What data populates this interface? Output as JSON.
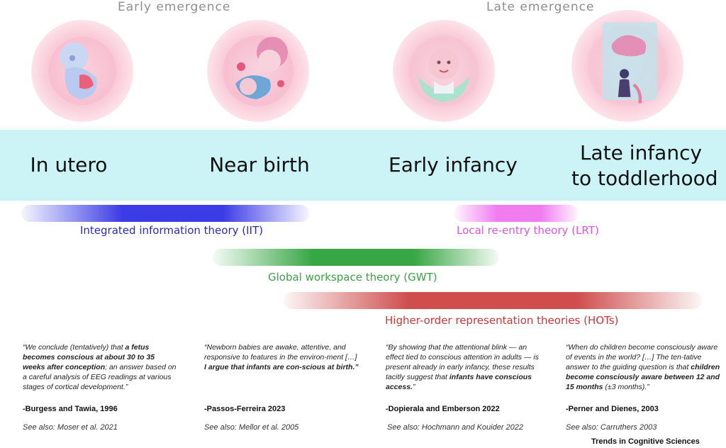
{
  "header": {
    "early_label": "Early emergence",
    "late_label": "Late emergence"
  },
  "stages": [
    {
      "label": "In utero"
    },
    {
      "label": "Near birth"
    },
    {
      "label": "Early infancy"
    },
    {
      "label_line1": "Late infancy",
      "label_line2": "to toddlerhood"
    }
  ],
  "theories": {
    "iit": {
      "label": "Integrated information theory (IIT)",
      "color": "#2b2bb0"
    },
    "lrt": {
      "label": "Local re-entry theory (LRT)",
      "color": "#d45bd4"
    },
    "gwt": {
      "label": "Global workspace theory (GWT)",
      "color": "#3f9f4a"
    },
    "hot": {
      "label": "Higher-order representation theories (HOTs)",
      "color": "#c23a3a"
    }
  },
  "quotes": [
    {
      "p1": "“We conclude (tentatively) that ",
      "b1": "a fetus becomes conscious at about 30 to 35 weeks after conception",
      "p2": "; an answer based on a careful analysis of EEG readings at various stages of cortical development.”",
      "citation": "-Burgess and Tawia, 1996",
      "see_also": "See also: Moser et al. 2021"
    },
    {
      "p1": "“Newborn babies  are awake, attentive, and responsive to features in the environ-ment […] ",
      "b1": "I argue that infants are con-scious at birth.”",
      "p2": "",
      "citation": "-Passos-Ferreira 2023",
      "see_also": "See also: Mellor et al. 2005"
    },
    {
      "p1": "“By showing that the attentional blink — an effect tied to conscious attention in adults — is present already in early infancy, these results tacitly suggest that ",
      "b1": "infants have conscious access.",
      "p2": "”",
      "citation": "-Dopierala and Emberson 2022",
      "see_also": "See also: Hochmann and Kouider 2022"
    },
    {
      "p1": "“When do children become consciously aware of events in the world? […] The ten-tative answer to the guiding question is that ",
      "b1": "children become consciously aware between 12 and 15 months",
      "p2": " (±3 months).”",
      "citation": "-Perner and Dienes, 2003",
      "see_also": "See also: Carruthers 2003"
    }
  ],
  "journal": "Trends in Cognitive Sciences"
}
